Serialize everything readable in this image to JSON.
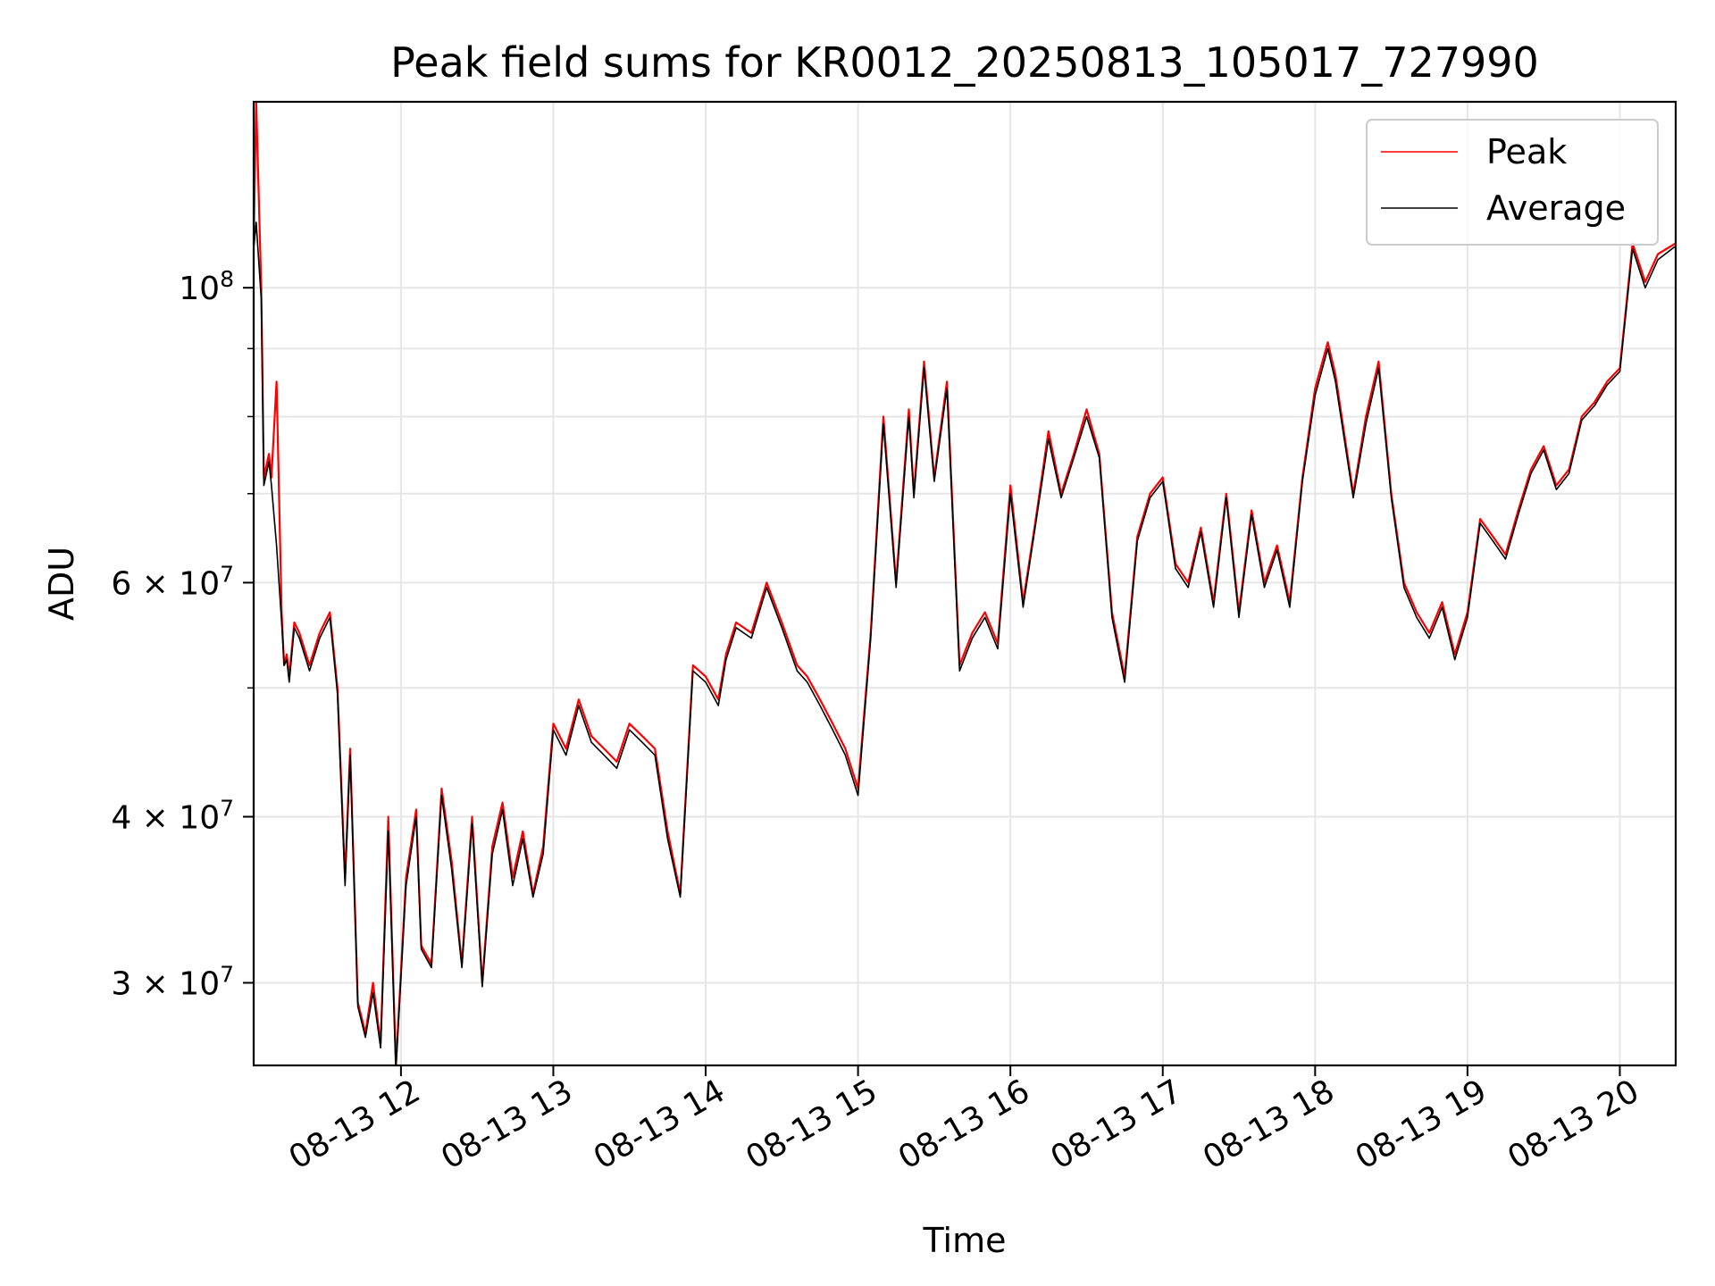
{
  "chart_data": {
    "type": "line",
    "title": "Peak field sums for KR0012_20250813_105017_727990",
    "xlabel": "Time",
    "ylabel": "ADU",
    "yscale": "log",
    "xlim": [
      "2025-08-13 11:02",
      "2025-08-13 20:22"
    ],
    "ylim": [
      26000000,
      138000000
    ],
    "grid": true,
    "legend_position": "top-right",
    "x_ticks": [
      "08-13 12",
      "08-13 13",
      "08-13 14",
      "08-13 15",
      "08-13 16",
      "08-13 17",
      "08-13 18",
      "08-13 19",
      "08-13 20"
    ],
    "x_tick_times": [
      "2025-08-13 12:00",
      "2025-08-13 13:00",
      "2025-08-13 14:00",
      "2025-08-13 15:00",
      "2025-08-13 16:00",
      "2025-08-13 17:00",
      "2025-08-13 18:00",
      "2025-08-13 19:00",
      "2025-08-13 20:00"
    ],
    "y_ticks": [
      {
        "value": 100000000,
        "label": "10",
        "sup": "8"
      },
      {
        "value": 60000000,
        "label": "6 × 10",
        "sup": "7"
      },
      {
        "value": 40000000,
        "label": "4 × 10",
        "sup": "7"
      },
      {
        "value": 30000000,
        "label": "3 × 10",
        "sup": "7"
      }
    ],
    "y_minor_ticks": [
      90000000,
      80000000,
      70000000,
      50000000
    ],
    "series": [
      {
        "name": "Peak",
        "color": "#ff0000",
        "x": [
          "2025-08-13 11:02",
          "2025-08-13 11:03",
          "2025-08-13 11:05",
          "2025-08-13 11:06",
          "2025-08-13 11:08",
          "2025-08-13 11:09",
          "2025-08-13 11:11",
          "2025-08-13 11:13",
          "2025-08-13 11:14",
          "2025-08-13 11:15",
          "2025-08-13 11:16",
          "2025-08-13 11:18",
          "2025-08-13 11:20",
          "2025-08-13 11:24",
          "2025-08-13 11:28",
          "2025-08-13 11:32",
          "2025-08-13 11:35",
          "2025-08-13 11:38",
          "2025-08-13 11:40",
          "2025-08-13 11:43",
          "2025-08-13 11:46",
          "2025-08-13 11:49",
          "2025-08-13 11:52",
          "2025-08-13 11:55",
          "2025-08-13 11:58",
          "2025-08-13 12:02",
          "2025-08-13 12:06",
          "2025-08-13 12:08",
          "2025-08-13 12:12",
          "2025-08-13 12:16",
          "2025-08-13 12:20",
          "2025-08-13 12:24",
          "2025-08-13 12:28",
          "2025-08-13 12:32",
          "2025-08-13 12:36",
          "2025-08-13 12:40",
          "2025-08-13 12:44",
          "2025-08-13 12:48",
          "2025-08-13 12:52",
          "2025-08-13 12:56",
          "2025-08-13 13:00",
          "2025-08-13 13:05",
          "2025-08-13 13:10",
          "2025-08-13 13:15",
          "2025-08-13 13:20",
          "2025-08-13 13:25",
          "2025-08-13 13:30",
          "2025-08-13 13:35",
          "2025-08-13 13:40",
          "2025-08-13 13:45",
          "2025-08-13 13:50",
          "2025-08-13 13:55",
          "2025-08-13 14:00",
          "2025-08-13 14:05",
          "2025-08-13 14:08",
          "2025-08-13 14:12",
          "2025-08-13 14:18",
          "2025-08-13 14:24",
          "2025-08-13 14:30",
          "2025-08-13 14:36",
          "2025-08-13 14:40",
          "2025-08-13 14:45",
          "2025-08-13 14:50",
          "2025-08-13 14:55",
          "2025-08-13 15:00",
          "2025-08-13 15:05",
          "2025-08-13 15:10",
          "2025-08-13 15:15",
          "2025-08-13 15:20",
          "2025-08-13 15:22",
          "2025-08-13 15:26",
          "2025-08-13 15:30",
          "2025-08-13 15:35",
          "2025-08-13 15:40",
          "2025-08-13 15:45",
          "2025-08-13 15:50",
          "2025-08-13 15:55",
          "2025-08-13 16:00",
          "2025-08-13 16:05",
          "2025-08-13 16:10",
          "2025-08-13 16:15",
          "2025-08-13 16:20",
          "2025-08-13 16:25",
          "2025-08-13 16:30",
          "2025-08-13 16:35",
          "2025-08-13 16:40",
          "2025-08-13 16:45",
          "2025-08-13 16:50",
          "2025-08-13 16:55",
          "2025-08-13 17:00",
          "2025-08-13 17:05",
          "2025-08-13 17:10",
          "2025-08-13 17:15",
          "2025-08-13 17:20",
          "2025-08-13 17:25",
          "2025-08-13 17:30",
          "2025-08-13 17:35",
          "2025-08-13 17:40",
          "2025-08-13 17:45",
          "2025-08-13 17:50",
          "2025-08-13 17:55",
          "2025-08-13 18:00",
          "2025-08-13 18:05",
          "2025-08-13 18:08",
          "2025-08-13 18:15",
          "2025-08-13 18:20",
          "2025-08-13 18:25",
          "2025-08-13 18:30",
          "2025-08-13 18:35",
          "2025-08-13 18:40",
          "2025-08-13 18:45",
          "2025-08-13 18:50",
          "2025-08-13 18:55",
          "2025-08-13 19:00",
          "2025-08-13 19:05",
          "2025-08-13 19:10",
          "2025-08-13 19:15",
          "2025-08-13 19:20",
          "2025-08-13 19:25",
          "2025-08-13 19:30",
          "2025-08-13 19:35",
          "2025-08-13 19:40",
          "2025-08-13 19:45",
          "2025-08-13 19:50",
          "2025-08-13 19:55",
          "2025-08-13 20:00",
          "2025-08-13 20:05",
          "2025-08-13 20:10",
          "2025-08-13 20:15",
          "2025-08-13 20:22"
        ],
        "values": [
          108000000,
          138000000,
          100000000,
          72000000,
          75000000,
          72000000,
          85000000,
          57000000,
          52000000,
          53000000,
          51000000,
          56000000,
          55000000,
          52000000,
          55000000,
          57000000,
          50000000,
          36000000,
          45000000,
          29000000,
          27500000,
          30000000,
          27000000,
          40000000,
          26000000,
          36000000,
          40500000,
          32000000,
          31000000,
          42000000,
          37000000,
          31000000,
          40000000,
          30000000,
          38000000,
          41000000,
          36000000,
          39000000,
          35000000,
          38000000,
          47000000,
          45000000,
          49000000,
          46000000,
          45000000,
          44000000,
          47000000,
          46000000,
          45000000,
          39000000,
          35000000,
          52000000,
          51000000,
          49000000,
          53000000,
          56000000,
          55000000,
          60000000,
          56000000,
          52000000,
          51000000,
          49000000,
          47000000,
          45000000,
          42000000,
          55000000,
          80000000,
          60000000,
          81000000,
          70000000,
          88000000,
          72000000,
          85000000,
          52000000,
          55000000,
          57000000,
          54000000,
          71000000,
          58000000,
          67000000,
          78000000,
          70000000,
          75000000,
          81000000,
          75000000,
          57000000,
          51000000,
          65000000,
          70000000,
          72000000,
          62000000,
          60000000,
          66000000,
          58000000,
          70000000,
          57000000,
          68000000,
          60000000,
          64000000,
          58000000,
          72000000,
          84000000,
          91000000,
          86000000,
          70000000,
          80000000,
          88000000,
          70000000,
          60000000,
          57000000,
          55000000,
          58000000,
          53000000,
          57000000,
          67000000,
          65000000,
          63000000,
          68000000,
          73000000,
          76000000,
          71000000,
          73000000,
          80000000,
          82000000,
          85000000,
          87000000,
          108000000,
          101000000,
          106000000,
          108000000
        ]
      },
      {
        "name": "Average",
        "color": "#000000",
        "x": [
          "2025-08-13 11:02",
          "2025-08-13 11:03",
          "2025-08-13 11:05",
          "2025-08-13 11:06",
          "2025-08-13 11:08",
          "2025-08-13 11:09",
          "2025-08-13 11:11",
          "2025-08-13 11:13",
          "2025-08-13 11:14",
          "2025-08-13 11:15",
          "2025-08-13 11:16",
          "2025-08-13 11:18",
          "2025-08-13 11:20",
          "2025-08-13 11:24",
          "2025-08-13 11:28",
          "2025-08-13 11:32",
          "2025-08-13 11:35",
          "2025-08-13 11:38",
          "2025-08-13 11:40",
          "2025-08-13 11:43",
          "2025-08-13 11:46",
          "2025-08-13 11:49",
          "2025-08-13 11:52",
          "2025-08-13 11:55",
          "2025-08-13 11:58",
          "2025-08-13 12:02",
          "2025-08-13 12:06",
          "2025-08-13 12:08",
          "2025-08-13 12:12",
          "2025-08-13 12:16",
          "2025-08-13 12:20",
          "2025-08-13 12:24",
          "2025-08-13 12:28",
          "2025-08-13 12:32",
          "2025-08-13 12:36",
          "2025-08-13 12:40",
          "2025-08-13 12:44",
          "2025-08-13 12:48",
          "2025-08-13 12:52",
          "2025-08-13 12:56",
          "2025-08-13 13:00",
          "2025-08-13 13:05",
          "2025-08-13 13:10",
          "2025-08-13 13:15",
          "2025-08-13 13:20",
          "2025-08-13 13:25",
          "2025-08-13 13:30",
          "2025-08-13 13:35",
          "2025-08-13 13:40",
          "2025-08-13 13:45",
          "2025-08-13 13:50",
          "2025-08-13 13:55",
          "2025-08-13 14:00",
          "2025-08-13 14:05",
          "2025-08-13 14:08",
          "2025-08-13 14:12",
          "2025-08-13 14:18",
          "2025-08-13 14:24",
          "2025-08-13 14:30",
          "2025-08-13 14:36",
          "2025-08-13 14:40",
          "2025-08-13 14:45",
          "2025-08-13 14:50",
          "2025-08-13 14:55",
          "2025-08-13 15:00",
          "2025-08-13 15:05",
          "2025-08-13 15:10",
          "2025-08-13 15:15",
          "2025-08-13 15:20",
          "2025-08-13 15:22",
          "2025-08-13 15:26",
          "2025-08-13 15:30",
          "2025-08-13 15:35",
          "2025-08-13 15:40",
          "2025-08-13 15:45",
          "2025-08-13 15:50",
          "2025-08-13 15:55",
          "2025-08-13 16:00",
          "2025-08-13 16:05",
          "2025-08-13 16:10",
          "2025-08-13 16:15",
          "2025-08-13 16:20",
          "2025-08-13 16:25",
          "2025-08-13 16:30",
          "2025-08-13 16:35",
          "2025-08-13 16:40",
          "2025-08-13 16:45",
          "2025-08-13 16:50",
          "2025-08-13 16:55",
          "2025-08-13 17:00",
          "2025-08-13 17:05",
          "2025-08-13 17:10",
          "2025-08-13 17:15",
          "2025-08-13 17:20",
          "2025-08-13 17:25",
          "2025-08-13 17:30",
          "2025-08-13 17:35",
          "2025-08-13 17:40",
          "2025-08-13 17:45",
          "2025-08-13 17:50",
          "2025-08-13 17:55",
          "2025-08-13 18:00",
          "2025-08-13 18:05",
          "2025-08-13 18:08",
          "2025-08-13 18:15",
          "2025-08-13 18:20",
          "2025-08-13 18:25",
          "2025-08-13 18:30",
          "2025-08-13 18:35",
          "2025-08-13 18:40",
          "2025-08-13 18:45",
          "2025-08-13 18:50",
          "2025-08-13 18:55",
          "2025-08-13 19:00",
          "2025-08-13 19:05",
          "2025-08-13 19:10",
          "2025-08-13 19:15",
          "2025-08-13 19:20",
          "2025-08-13 19:25",
          "2025-08-13 19:30",
          "2025-08-13 19:35",
          "2025-08-13 19:40",
          "2025-08-13 19:45",
          "2025-08-13 19:50",
          "2025-08-13 19:55",
          "2025-08-13 20:00",
          "2025-08-13 20:05",
          "2025-08-13 20:10",
          "2025-08-13 20:15",
          "2025-08-13 20:22"
        ],
        "values": [
          107000000,
          112000000,
          98000000,
          71000000,
          74000000,
          71000000,
          64000000,
          56000000,
          52000000,
          52500000,
          50500000,
          55500000,
          54500000,
          51500000,
          54500000,
          56500000,
          49500000,
          35500000,
          44500000,
          28800000,
          27300000,
          29500000,
          26800000,
          39000000,
          25800000,
          35500000,
          40000000,
          31800000,
          30800000,
          41500000,
          36500000,
          30800000,
          39500000,
          29800000,
          37500000,
          40500000,
          35500000,
          38500000,
          34800000,
          37500000,
          46500000,
          44500000,
          48500000,
          45500000,
          44500000,
          43500000,
          46500000,
          45500000,
          44500000,
          38500000,
          34800000,
          51500000,
          50500000,
          48500000,
          52500000,
          55500000,
          54500000,
          59500000,
          55500000,
          51500000,
          50500000,
          48500000,
          46500000,
          44500000,
          41500000,
          54500000,
          79000000,
          59500000,
          80000000,
          69500000,
          87000000,
          71500000,
          84000000,
          51500000,
          54500000,
          56500000,
          53500000,
          70000000,
          57500000,
          66500000,
          77000000,
          69500000,
          74500000,
          80000000,
          74500000,
          56500000,
          50500000,
          64500000,
          69500000,
          71500000,
          61500000,
          59500000,
          65500000,
          57500000,
          69500000,
          56500000,
          67500000,
          59500000,
          63500000,
          57500000,
          71500000,
          83000000,
          90000000,
          85000000,
          69500000,
          79000000,
          87000000,
          69500000,
          59500000,
          56500000,
          54500000,
          57500000,
          52500000,
          56500000,
          66500000,
          64500000,
          62500000,
          67500000,
          72500000,
          75500000,
          70500000,
          72500000,
          79500000,
          81500000,
          84500000,
          86500000,
          107000000,
          100000000,
          105000000,
          107500000
        ]
      }
    ]
  }
}
